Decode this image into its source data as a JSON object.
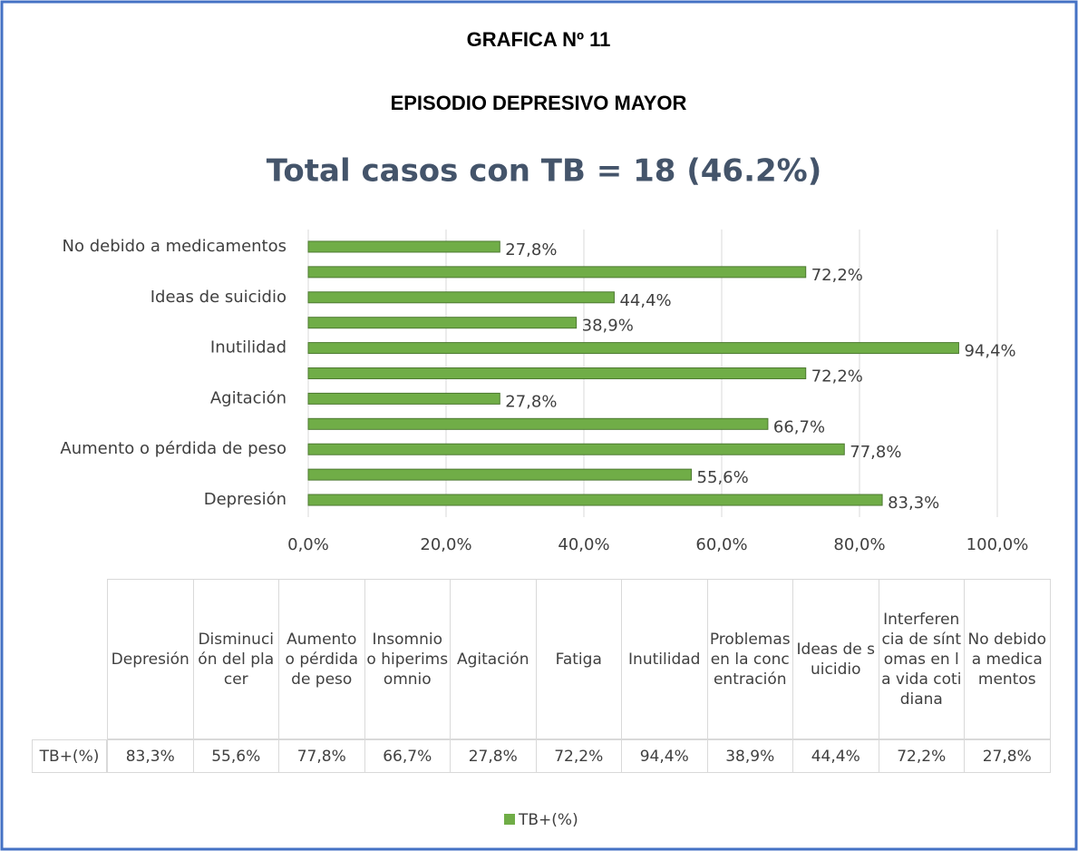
{
  "heading": "GRAFICA Nº 11",
  "subheading": "EPISODIO DEPRESIVO MAYOR",
  "chart_data": {
    "type": "bar",
    "orientation": "horizontal",
    "title": "Total casos con TB = 18 (46.2%)",
    "categories": [
      "Depresión",
      "Disminución del placer",
      "Aumento o pérdida de peso",
      "Insomnio o hiperimsomnio",
      "Agitación",
      "Fatiga",
      "Inutilidad",
      "Problemas en la concentración",
      "Ideas de suicidio",
      "Interferencia de síntomas en la vida cotidiana",
      "No debido a medicamentos"
    ],
    "series": [
      {
        "name": "TB+(%)",
        "color": "#70ad47",
        "values": [
          83.3,
          55.6,
          77.8,
          66.7,
          27.8,
          72.2,
          94.4,
          38.9,
          44.4,
          72.2,
          27.8
        ],
        "value_labels": [
          "83,3%",
          "55,6%",
          "77,8%",
          "66,7%",
          "27,8%",
          "72,2%",
          "94,4%",
          "38,9%",
          "44,4%",
          "72,2%",
          "27,8%"
        ]
      }
    ],
    "xlim": [
      0,
      100
    ],
    "xticks": [
      {
        "value": 0,
        "label": "0,0%"
      },
      {
        "value": 20,
        "label": "20,0%"
      },
      {
        "value": 40,
        "label": "40,0%"
      },
      {
        "value": 60,
        "label": "60,0%"
      },
      {
        "value": 80,
        "label": "80,0%"
      },
      {
        "value": 100,
        "label": "100,0%"
      }
    ],
    "grid": true,
    "legend": "bottom"
  }
}
